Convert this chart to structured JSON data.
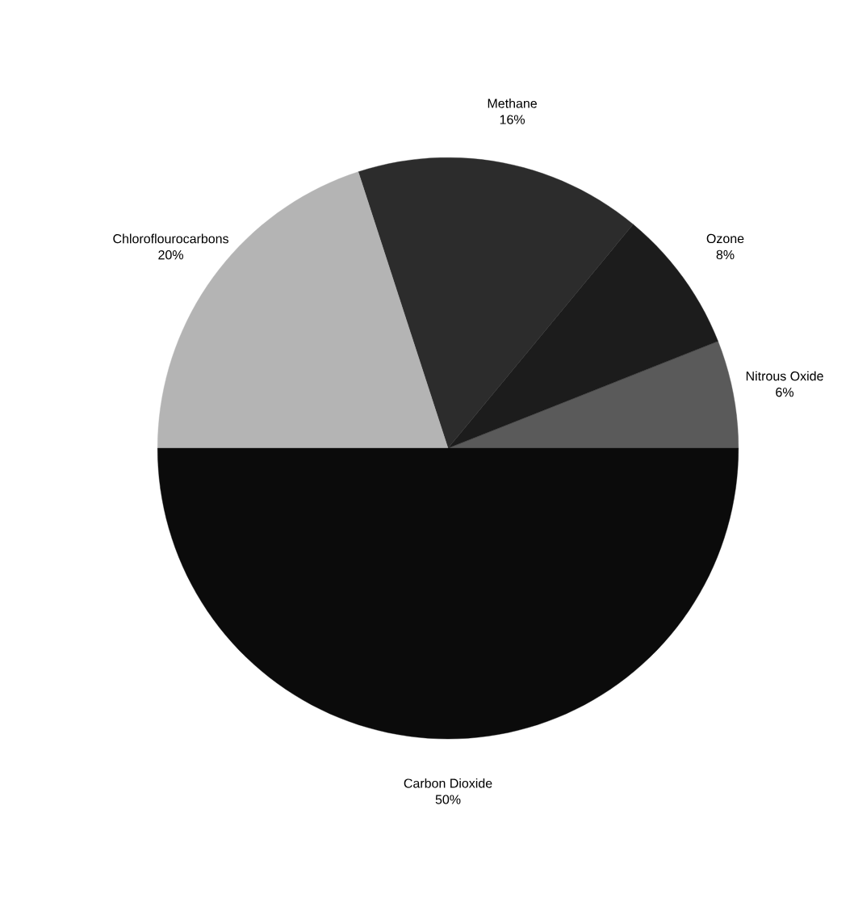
{
  "chart_data": {
    "type": "pie",
    "categories": [
      "Nitrous Oxide",
      "Ozone",
      "Methane",
      "Chloroflourocarbons",
      "Carbon Dioxide"
    ],
    "values": [
      6,
      8,
      16,
      20,
      50
    ],
    "value_labels": [
      "6%",
      "8%",
      "16%",
      "20%",
      "50%"
    ],
    "colors": [
      "#5a5a5a",
      "#1c1c1c",
      "#2c2c2c",
      "#b4b4b4",
      "#0b0b0b"
    ]
  }
}
